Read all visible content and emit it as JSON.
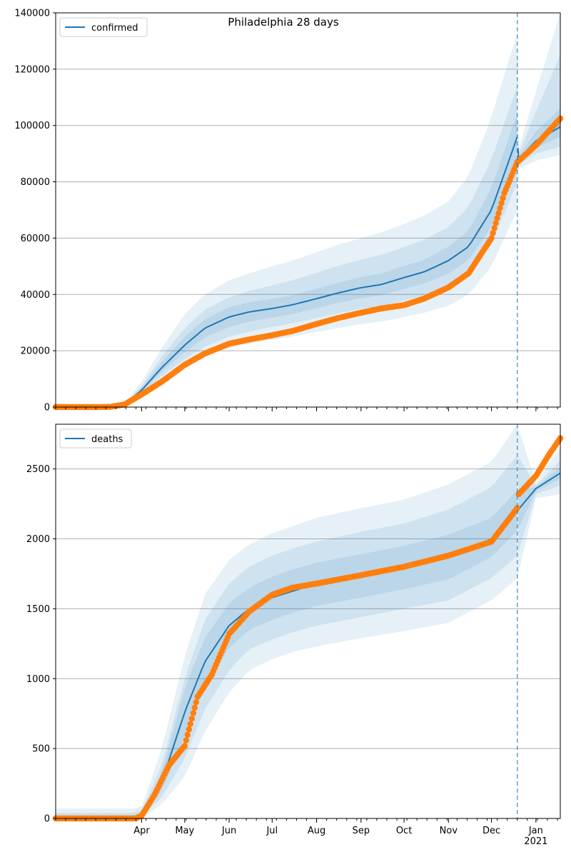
{
  "colors": {
    "fit_line": "#1f77b4",
    "observed": "#ff7f0e",
    "band": "#1f77b4",
    "grid": "#b0b0b0",
    "vline": "#1f77b4"
  },
  "chart_data": [
    {
      "type": "line",
      "title": "Philadelphia 28 days",
      "legend": {
        "label": "confirmed",
        "placement": "top-left"
      },
      "ylim": [
        0,
        140000
      ],
      "yticks": [
        0,
        20000,
        40000,
        60000,
        80000,
        100000,
        120000,
        140000
      ],
      "ytick_labels": [
        "0",
        "20000",
        "40000",
        "60000",
        "80000",
        "100000",
        "120000",
        "140000"
      ],
      "grid": "y",
      "vertical_line_date": "2020-12-19",
      "fit": {
        "x": [
          "2020-02-01",
          "2020-03-10",
          "2020-03-20",
          "2020-04-01",
          "2020-04-15",
          "2020-05-01",
          "2020-05-15",
          "2020-06-01",
          "2020-06-15",
          "2020-07-01",
          "2020-07-15",
          "2020-08-01",
          "2020-08-15",
          "2020-09-01",
          "2020-09-15",
          "2020-10-01",
          "2020-10-15",
          "2020-11-01",
          "2020-11-15",
          "2020-12-01",
          "2020-12-10",
          "2020-12-19",
          "2020-12-20",
          "2021-01-01",
          "2021-01-18"
        ],
        "values": [
          0,
          200,
          1000,
          6000,
          14000,
          22000,
          28000,
          32000,
          33800,
          35000,
          36300,
          38500,
          40400,
          42400,
          43500,
          46000,
          48000,
          52000,
          57000,
          70000,
          83000,
          96000,
          88000,
          94500,
          99500
        ],
        "bands": [
          {
            "lower": [
              0,
              160,
              800,
              4500,
              9500,
              14000,
              18000,
              21000,
              22500,
              24000,
              25000,
              26700,
              28000,
              29500,
              30300,
              32000,
              33500,
              36000,
              40000,
              50000,
              60000,
              70000,
              84500,
              87500,
              89500
            ],
            "upper": [
              0,
              240,
              1300,
              9000,
              21000,
              33000,
              40000,
              45000,
              47500,
              50000,
              52000,
              55000,
              57500,
              60000,
              62000,
              65000,
              68000,
              73000,
              82000,
              103000,
              118000,
              133000,
              92000,
              112000,
              140000
            ]
          },
          {
            "lower": [
              0,
              175,
              880,
              5000,
              11000,
              17000,
              21500,
              25000,
              26800,
              28500,
              29700,
              31600,
              33200,
              34900,
              35800,
              37800,
              39600,
              42800,
              47200,
              58000,
              68800,
              80000,
              86000,
              90000,
              92500
            ],
            "upper": [
              0,
              225,
              1150,
              7500,
              18000,
              28000,
              34500,
              39000,
              41200,
              43200,
              45000,
              47700,
              50000,
              52300,
              54000,
              56800,
              59400,
              64000,
              71000,
              88000,
              101000,
              114000,
              90000,
              105000,
              125000
            ]
          },
          {
            "lower": [
              0,
              188,
              940,
              5500,
              12500,
              19500,
              24700,
              28500,
              30300,
              31800,
              33000,
              35100,
              36900,
              38700,
              39700,
              42000,
              43900,
              47400,
              52200,
              64000,
              76000,
              88000,
              87000,
              92000,
              96000
            ],
            "upper": [
              0,
              212,
              1060,
              6700,
              16000,
              25000,
              31200,
              35500,
              37300,
              38500,
              39600,
              42000,
              44000,
              46200,
              47400,
              50200,
              52300,
              57000,
              62500,
              78000,
              91000,
              104500,
              89000,
              98000,
              106000
            ]
          }
        ]
      },
      "observed": {
        "x": [
          "2020-02-01",
          "2020-03-01",
          "2020-03-10",
          "2020-03-20",
          "2020-04-01",
          "2020-04-15",
          "2020-05-01",
          "2020-05-15",
          "2020-06-01",
          "2020-06-15",
          "2020-07-01",
          "2020-07-15",
          "2020-08-01",
          "2020-08-15",
          "2020-09-01",
          "2020-09-15",
          "2020-10-01",
          "2020-10-15",
          "2020-11-01",
          "2020-11-15",
          "2020-12-01",
          "2020-12-10",
          "2020-12-19",
          "2021-01-01",
          "2021-01-10",
          "2021-01-18"
        ],
        "values": [
          0,
          0,
          80,
          900,
          4500,
          9000,
          15000,
          19000,
          22500,
          24000,
          25500,
          27000,
          29500,
          31500,
          33500,
          35000,
          36200,
          38500,
          42500,
          47500,
          60000,
          76000,
          87000,
          93000,
          98000,
          102500
        ]
      }
    },
    {
      "type": "line",
      "title": "",
      "legend": {
        "label": "deaths",
        "placement": "top-left"
      },
      "ylim": [
        0,
        2820
      ],
      "yticks": [
        0,
        500,
        1000,
        1500,
        2000,
        2500
      ],
      "ytick_labels": [
        "0",
        "500",
        "1000",
        "1500",
        "2000",
        "2500"
      ],
      "grid": "y",
      "vertical_line_date": "2020-12-19",
      "xticks": [
        "2020-04-01",
        "2020-05-01",
        "2020-06-01",
        "2020-07-01",
        "2020-08-01",
        "2020-09-01",
        "2020-10-01",
        "2020-11-01",
        "2020-12-01",
        "2021-01-01"
      ],
      "xtick_labels": [
        "Apr",
        "May",
        "Jun",
        "Jul",
        "Aug",
        "Sep",
        "Oct",
        "Nov",
        "Dec",
        "Jan"
      ],
      "xtick_year_label": "2021",
      "fit": {
        "x": [
          "2020-02-01",
          "2020-03-25",
          "2020-04-01",
          "2020-04-15",
          "2020-05-01",
          "2020-05-15",
          "2020-06-01",
          "2020-06-15",
          "2020-07-01",
          "2020-07-15",
          "2020-08-01",
          "2020-09-01",
          "2020-10-01",
          "2020-11-01",
          "2020-12-01",
          "2020-12-19",
          "2021-01-01",
          "2021-01-18"
        ],
        "values": [
          0,
          5,
          30,
          260,
          760,
          1120,
          1380,
          1500,
          1580,
          1625,
          1680,
          1740,
          1800,
          1870,
          2000,
          2200,
          2360,
          2470
        ],
        "bands": [
          {
            "lower": [
              0,
              0,
              5,
              100,
              300,
              620,
              900,
              1060,
              1140,
              1190,
              1230,
              1290,
              1340,
              1400,
              1560,
              1720,
              2290,
              2320
            ],
            "upper": [
              70,
              70,
              80,
              500,
              1160,
              1600,
              1850,
              1960,
              2040,
              2090,
              2150,
              2220,
              2280,
              2390,
              2550,
              2820,
              2400,
              2650
            ]
          },
          {
            "lower": [
              0,
              2,
              12,
              150,
              430,
              780,
              1060,
              1210,
              1280,
              1330,
              1380,
              1440,
              1500,
              1560,
              1720,
              1880,
              2320,
              2380
            ],
            "upper": [
              40,
              40,
              55,
              380,
              1000,
              1420,
              1680,
              1800,
              1880,
              1930,
              1980,
              2050,
              2110,
              2210,
              2370,
              2600,
              2380,
              2560
            ]
          },
          {
            "lower": [
              0,
              4,
              20,
              200,
              590,
              950,
              1220,
              1350,
              1420,
              1470,
              1520,
              1580,
              1640,
              1710,
              1870,
              2060,
              2340,
              2430
            ],
            "upper": [
              20,
              20,
              40,
              320,
              930,
              1290,
              1540,
              1650,
              1730,
              1780,
              1830,
              1890,
              1950,
              2030,
              2150,
              2350,
              2370,
              2510
            ]
          }
        ]
      },
      "observed": {
        "x": [
          "2020-02-01",
          "2020-03-28",
          "2020-04-01",
          "2020-04-10",
          "2020-04-20",
          "2020-05-01",
          "2020-05-10",
          "2020-05-20",
          "2020-06-01",
          "2020-06-15",
          "2020-07-01",
          "2020-07-15",
          "2020-08-01",
          "2020-09-01",
          "2020-10-01",
          "2020-11-01",
          "2020-12-01",
          "2020-12-19",
          "2020-12-20",
          "2021-01-01",
          "2021-01-10",
          "2021-01-18"
        ],
        "values": [
          0,
          0,
          20,
          170,
          380,
          520,
          870,
          1030,
          1320,
          1480,
          1600,
          1650,
          1680,
          1740,
          1800,
          1880,
          1980,
          2220,
          2320,
          2450,
          2600,
          2720
        ]
      }
    }
  ]
}
